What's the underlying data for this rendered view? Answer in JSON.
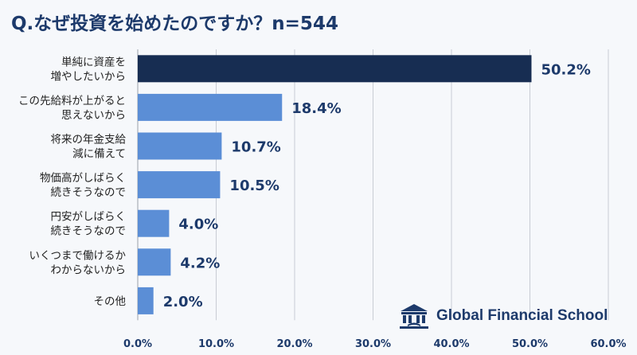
{
  "title": "Q.なぜ投資を始めたのですか？n=544",
  "brand": {
    "name": "Global Financial School"
  },
  "colors": {
    "highlight": "#172d52",
    "bar": "#5b8ed6",
    "text": "#1d3a6b",
    "grid": "#c8ccd4"
  },
  "chart_data": {
    "type": "bar",
    "orientation": "horizontal",
    "categories": [
      [
        "単純に資産を",
        "増やしたいから"
      ],
      [
        "この先給料が上がると",
        "思えないから"
      ],
      [
        "将来の年金支給",
        "減に備えて"
      ],
      [
        "物価高がしばらく",
        "続きそうなので"
      ],
      [
        "円安がしばらく",
        "続きそうなので"
      ],
      [
        "いくつまで働けるか",
        "わからないから"
      ],
      [
        "その他"
      ]
    ],
    "values": [
      50.2,
      18.4,
      10.7,
      10.5,
      4.0,
      4.2,
      2.0
    ],
    "value_labels": [
      "50.2%",
      "18.4%",
      "10.7%",
      "10.5%",
      "4.0%",
      "4.2%",
      "2.0%"
    ],
    "xlim": [
      0,
      60
    ],
    "ticks": [
      0,
      10,
      20,
      30,
      40,
      50,
      60
    ],
    "tick_labels": [
      "0.0%",
      "10.0%",
      "20.0%",
      "30.0%",
      "40.0%",
      "50.0%",
      "60.0%"
    ],
    "grid": "vertical",
    "highlight_index": 0
  }
}
